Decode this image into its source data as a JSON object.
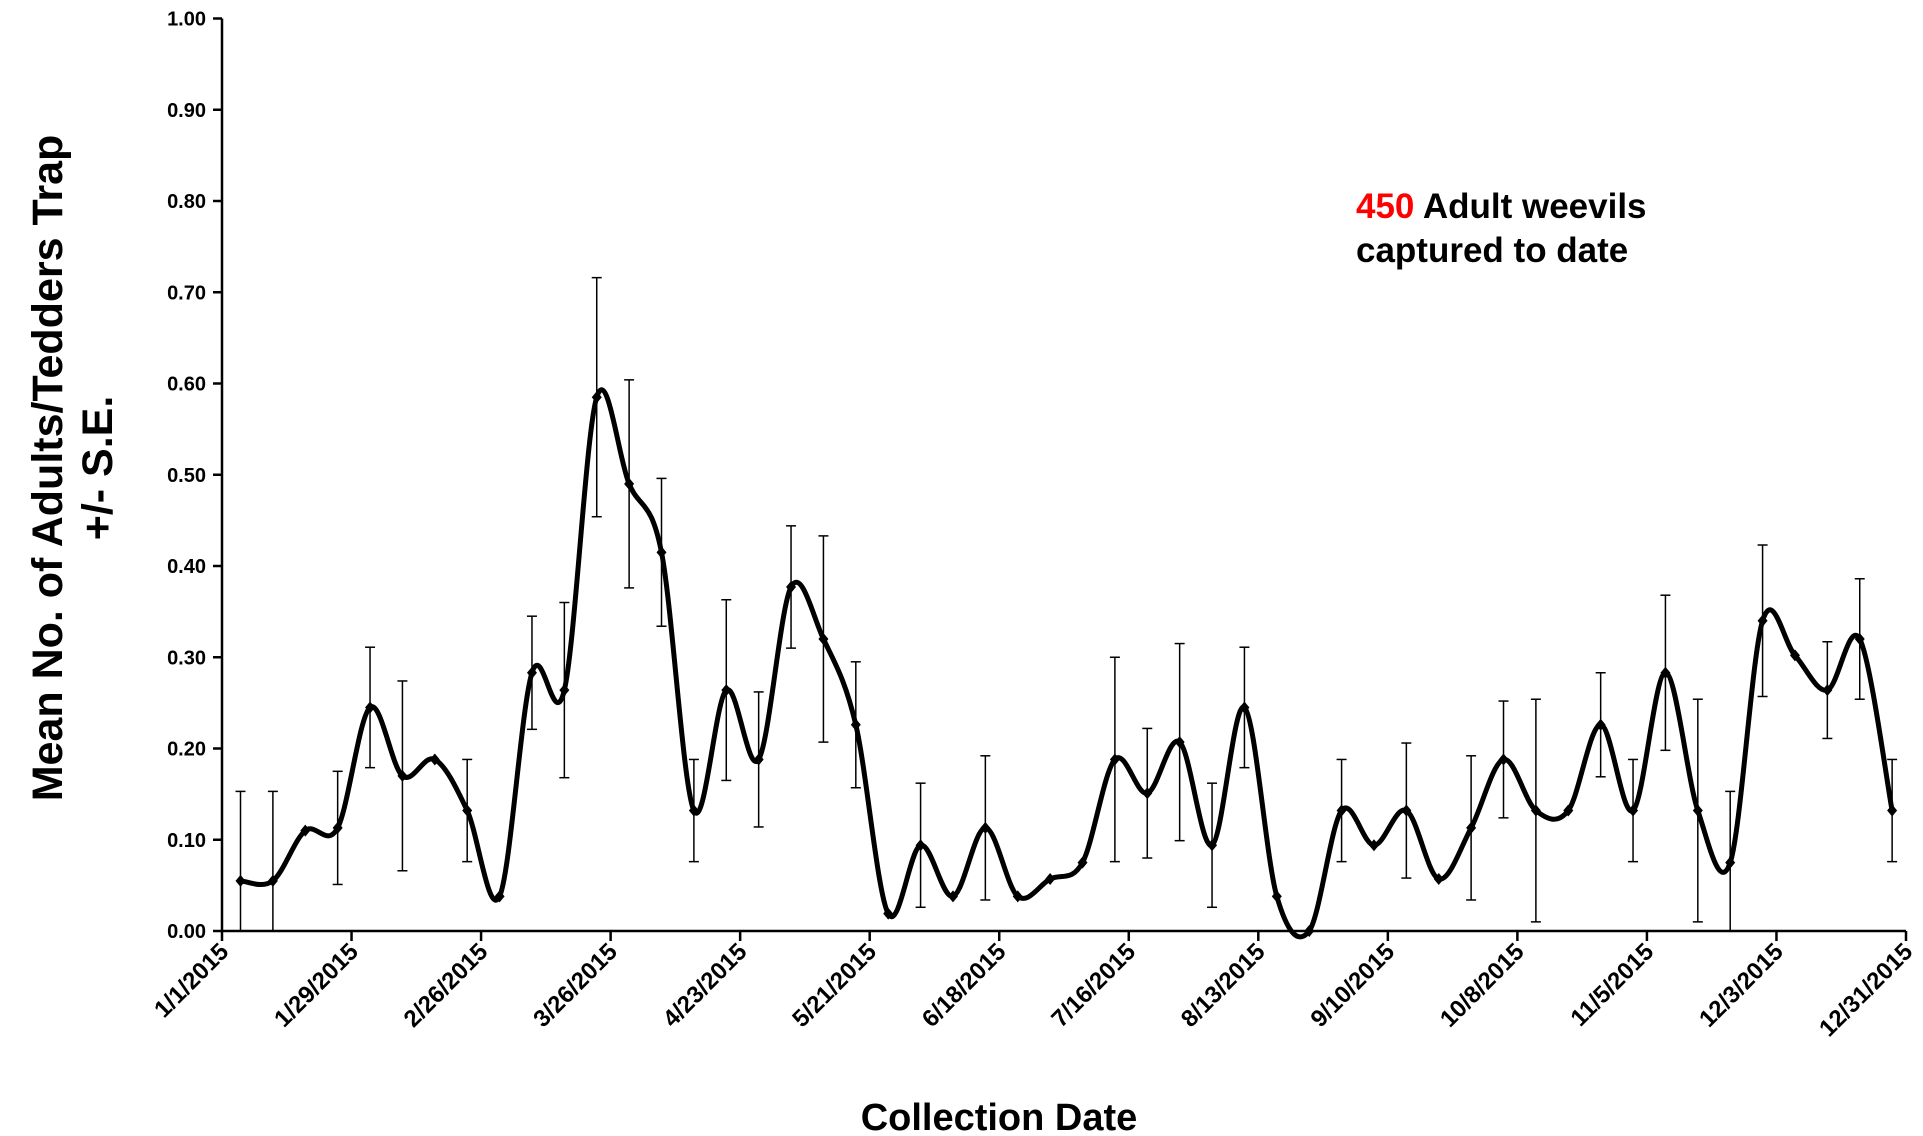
{
  "chart_data": {
    "type": "line",
    "x_label": "Collection Date",
    "y_label": [
      "Mean No. of Adults/Tedders Trap",
      "+/- S.E."
    ],
    "annotation": {
      "count": "450",
      "count_color": "#ff0000",
      "line1": "Adult weevils",
      "line2": "captured to date"
    },
    "x": [
      "1/5/2015",
      "1/12/2015",
      "1/19/2015",
      "1/26/2015",
      "2/2/2015",
      "2/9/2015",
      "2/16/2015",
      "2/23/2015",
      "3/2/2015",
      "3/9/2015",
      "3/16/2015",
      "3/23/2015",
      "3/30/2015",
      "4/6/2015",
      "4/13/2015",
      "4/20/2015",
      "4/27/2015",
      "5/4/2015",
      "5/11/2015",
      "5/18/2015",
      "5/25/2015",
      "6/1/2015",
      "6/8/2015",
      "6/15/2015",
      "6/22/2015",
      "6/29/2015",
      "7/6/2015",
      "7/13/2015",
      "7/20/2015",
      "7/27/2015",
      "8/3/2015",
      "8/10/2015",
      "8/17/2015",
      "8/24/2015",
      "8/31/2015",
      "9/7/2015",
      "9/14/2015",
      "9/21/2015",
      "9/28/2015",
      "10/5/2015",
      "10/12/2015",
      "10/19/2015",
      "10/26/2015",
      "11/2/2015",
      "11/9/2015",
      "11/16/2015",
      "11/23/2015",
      "11/30/2015",
      "12/7/2015",
      "12/14/2015",
      "12/21/2015",
      "12/28/2015"
    ],
    "series": [
      {
        "name": "Adults",
        "color": "#000000",
        "values": [
          0.055,
          0.055,
          0.11,
          0.113,
          0.245,
          0.17,
          0.188,
          0.132,
          0.038,
          0.283,
          0.264,
          0.585,
          0.49,
          0.415,
          0.132,
          0.264,
          0.188,
          0.377,
          0.32,
          0.226,
          0.019,
          0.094,
          0.038,
          0.113,
          0.038,
          0.057,
          0.075,
          0.188,
          0.151,
          0.207,
          0.094,
          0.245,
          0.038,
          0,
          0.132,
          0.094,
          0.132,
          0.057,
          0.113,
          0.188,
          0.132,
          0.132,
          0.226,
          0.132,
          0.283,
          0.132,
          0.075,
          0.34,
          0.302,
          0.264,
          0.32,
          0.132
        ],
        "errors": [
          0.098,
          0.098,
          null,
          0.062,
          0.066,
          0.104,
          null,
          0.056,
          null,
          0.062,
          0.096,
          0.131,
          0.114,
          0.081,
          0.056,
          0.099,
          0.074,
          0.067,
          0.113,
          0.069,
          null,
          0.068,
          null,
          0.079,
          null,
          null,
          null,
          0.112,
          0.071,
          0.108,
          0.068,
          0.066,
          null,
          null,
          0.056,
          null,
          0.074,
          null,
          0.079,
          0.064,
          0.122,
          null,
          0.057,
          0.056,
          0.085,
          0.122,
          0.078,
          0.083,
          null,
          0.053,
          0.066,
          0.056
        ]
      }
    ],
    "xlim": [
      "1/1/2015",
      "12/31/2015"
    ],
    "xticks": [
      "1/1/2015",
      "1/29/2015",
      "2/26/2015",
      "3/26/2015",
      "4/23/2015",
      "5/21/2015",
      "6/18/2015",
      "7/16/2015",
      "8/13/2015",
      "9/10/2015",
      "10/8/2015",
      "11/5/2015",
      "12/3/2015",
      "12/31/2015"
    ],
    "ylim": [
      0,
      1
    ],
    "yticks": [
      {
        "value": 0,
        "label": "0.00"
      },
      {
        "value": 0.1,
        "label": "0.10"
      },
      {
        "value": 0.2,
        "label": "0.20"
      },
      {
        "value": 0.3,
        "label": "0.30"
      },
      {
        "value": 0.4,
        "label": "0.40"
      },
      {
        "value": 0.5,
        "label": "0.50"
      },
      {
        "value": 0.6,
        "label": "0.60"
      },
      {
        "value": 0.7,
        "label": "0.70"
      },
      {
        "value": 0.8,
        "label": "0.80"
      },
      {
        "value": 0.9,
        "label": "0.90"
      },
      {
        "value": 1,
        "label": "1.00"
      }
    ],
    "grid": false
  }
}
